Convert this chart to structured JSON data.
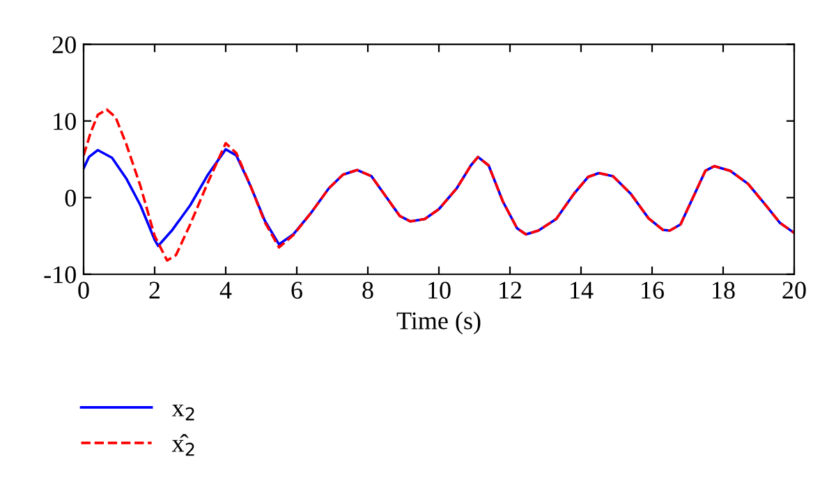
{
  "chart_data": {
    "type": "line",
    "xlabel": "Time (s)",
    "xlim": [
      0,
      20
    ],
    "ylim": [
      -10,
      20
    ],
    "xticks": [
      0,
      2,
      4,
      6,
      8,
      10,
      12,
      14,
      16,
      18,
      20
    ],
    "yticks": [
      -10,
      0,
      10,
      20
    ],
    "grid": false,
    "legend": "bottom left",
    "marker": "none",
    "series": [
      {
        "name": "x$_{2}$",
        "color": "#0000ff",
        "line_style": "solid",
        "x": [
          0,
          0.15,
          0.4,
          0.8,
          1.2,
          1.6,
          2.0,
          2.1,
          2.5,
          3.0,
          3.5,
          4.0,
          4.3,
          4.7,
          5.1,
          5.5,
          5.9,
          6.4,
          6.9,
          7.3,
          7.7,
          8.1,
          8.5,
          8.9,
          9.2,
          9.6,
          10.0,
          10.5,
          10.9,
          11.1,
          11.4,
          11.8,
          12.2,
          12.45,
          12.8,
          13.3,
          13.8,
          14.2,
          14.5,
          14.9,
          15.4,
          15.9,
          16.3,
          16.5,
          16.8,
          17.2,
          17.5,
          17.75,
          18.2,
          18.7,
          19.2,
          19.6,
          20
        ],
        "values": [
          3.8,
          5.3,
          6.2,
          5.2,
          2.5,
          -1.0,
          -5.5,
          -6.3,
          -4.2,
          -1.0,
          3.0,
          6.3,
          5.5,
          1.5,
          -3.0,
          -6.1,
          -4.8,
          -2.0,
          1.2,
          3.0,
          3.6,
          2.8,
          0.2,
          -2.4,
          -3.1,
          -2.8,
          -1.5,
          1.2,
          4.2,
          5.3,
          4.2,
          -0.5,
          -4.0,
          -4.8,
          -4.3,
          -2.8,
          0.5,
          2.7,
          3.2,
          2.8,
          0.5,
          -2.7,
          -4.2,
          -4.3,
          -3.5,
          0.5,
          3.5,
          4.1,
          3.5,
          1.8,
          -1.0,
          -3.3,
          -4.6
        ]
      },
      {
        "name": "x̂$_{2}$",
        "color": "#ff0000",
        "line_style": "dashed",
        "x": [
          0,
          0.2,
          0.4,
          0.65,
          0.9,
          1.2,
          1.6,
          2.0,
          2.35,
          2.6,
          3.0,
          3.5,
          4.0,
          4.3,
          4.7,
          5.1,
          5.5,
          5.9,
          6.4,
          6.9,
          7.3,
          7.7,
          8.1,
          8.5,
          8.9,
          9.2,
          9.6,
          10.0,
          10.5,
          10.9,
          11.1,
          11.4,
          11.8,
          12.2,
          12.45,
          12.8,
          13.3,
          13.8,
          14.2,
          14.5,
          14.9,
          15.4,
          15.9,
          16.3,
          16.5,
          16.8,
          17.2,
          17.5,
          17.75,
          18.2,
          18.7,
          19.2,
          19.6,
          20
        ],
        "values": [
          5.5,
          8.5,
          10.8,
          11.5,
          10.5,
          7.0,
          1.5,
          -5.0,
          -8.2,
          -7.5,
          -3.5,
          2.0,
          7.1,
          5.8,
          1.5,
          -3.2,
          -6.5,
          -4.9,
          -2.0,
          1.2,
          3.0,
          3.6,
          2.8,
          0.2,
          -2.4,
          -3.1,
          -2.8,
          -1.5,
          1.2,
          4.2,
          5.3,
          4.2,
          -0.5,
          -4.0,
          -4.8,
          -4.3,
          -2.8,
          0.5,
          2.7,
          3.2,
          2.8,
          0.5,
          -2.7,
          -4.2,
          -4.3,
          -3.5,
          0.5,
          3.5,
          4.1,
          3.5,
          1.8,
          -1.0,
          -3.3,
          -4.6
        ]
      }
    ]
  }
}
